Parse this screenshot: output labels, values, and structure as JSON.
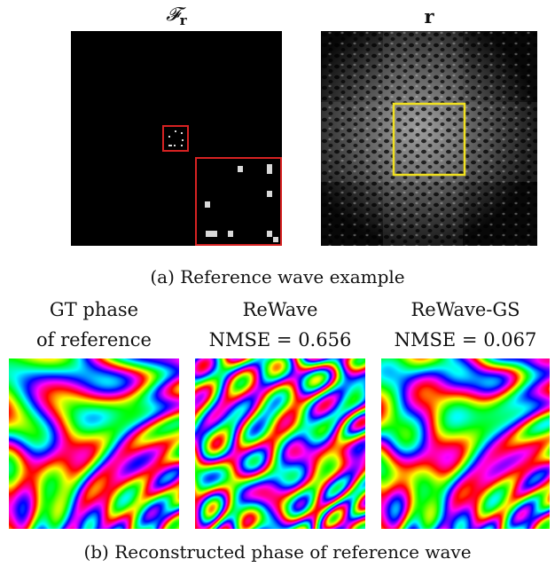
{
  "panel_a": {
    "left_title": "𝓕",
    "left_title_sub": "r",
    "right_title": "r",
    "caption": "(a) Reference wave example"
  },
  "panel_b": {
    "columns": [
      {
        "line1": "GT phase",
        "line2": "of reference"
      },
      {
        "line1": "ReWave",
        "line2": "NMSE = 0.656"
      },
      {
        "line1": "ReWave-GS",
        "line2": "NMSE = 0.067"
      }
    ],
    "caption": "(b) Reconstructed phase of reference wave"
  },
  "colors": {
    "highlight_red": "#d62222",
    "highlight_yellow": "#f0e020"
  }
}
